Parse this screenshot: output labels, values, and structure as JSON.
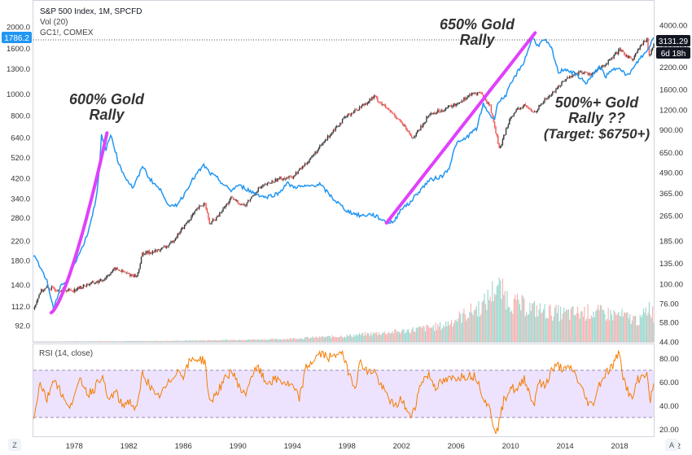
{
  "legend": {
    "symbol": "S&P 500 Index, 1M, SPCFD",
    "volume": "Vol (20)",
    "gold": "GC1!, COMEX",
    "rsi": "RSI (14, close)"
  },
  "price_tags": {
    "gold_last": "1786.2",
    "spx_last": "3131.29",
    "countdown": "6d 18h"
  },
  "annotations": [
    {
      "lines": [
        "600% Gold",
        "Rally"
      ]
    },
    {
      "lines": [
        "650% Gold",
        "Rally"
      ]
    },
    {
      "lines": [
        "500%+ Gold",
        "Rally ??",
        "(Target: $6750+)"
      ]
    }
  ],
  "footer": {
    "left_icon": "Z",
    "right_icon": "A"
  },
  "colors": {
    "gold_line": "#2196f3",
    "spx_up": "#26a69a",
    "spx_down": "#ef5350",
    "rally_highlight": "#e040fb",
    "rsi_line": "#f57c00",
    "rsi_band": "#ede3ff",
    "tag_blue": "#2196f3",
    "tag_dark": "#131722"
  },
  "chart_data": {
    "type": "line",
    "x_axis": {
      "ticks": [
        "1978",
        "1982",
        "1986",
        "1990",
        "1994",
        "1998",
        "2002",
        "2006",
        "2010",
        "2014",
        "2018",
        "202"
      ],
      "range": [
        1975.0,
        2020.5
      ]
    },
    "left_axis": {
      "label": "",
      "scale": "log",
      "ticks": [
        "92.0",
        "112.0",
        "140.0",
        "180.0",
        "220.0",
        "280.0",
        "340.0",
        "420.0",
        "520.0",
        "640.0",
        "800.0",
        "1000.0",
        "1300.0",
        "1600.0",
        "2000.0"
      ]
    },
    "right_axis": {
      "label": "",
      "scale": "log",
      "ticks": [
        "44.00",
        "58.00",
        "76.00",
        "100.00",
        "135.00",
        "185.00",
        "265.00",
        "365.00",
        "490.00",
        "650.00",
        "900.00",
        "1200.00",
        "1600.00",
        "2200.00",
        "3000.00",
        "4000.00"
      ]
    },
    "rsi_axis": {
      "ticks": [
        "20.00",
        "40.00",
        "60.00",
        "80.00"
      ],
      "range": [
        14,
        92
      ],
      "band": [
        30,
        70
      ]
    },
    "series": [
      {
        "name": "GC1!, COMEX",
        "axis": "left",
        "points": [
          [
            1975.0,
            190
          ],
          [
            1975.5,
            170
          ],
          [
            1976.0,
            145
          ],
          [
            1976.5,
            108
          ],
          [
            1977.0,
            140
          ],
          [
            1977.5,
            145
          ],
          [
            1978.0,
            175
          ],
          [
            1978.5,
            200
          ],
          [
            1979.0,
            240
          ],
          [
            1979.5,
            320
          ],
          [
            1979.8,
            420
          ],
          [
            1980.0,
            650
          ],
          [
            1980.3,
            560
          ],
          [
            1980.7,
            660
          ],
          [
            1981.0,
            560
          ],
          [
            1981.3,
            480
          ],
          [
            1981.8,
            420
          ],
          [
            1982.3,
            380
          ],
          [
            1982.8,
            440
          ],
          [
            1983.0,
            480
          ],
          [
            1983.5,
            420
          ],
          [
            1984.0,
            390
          ],
          [
            1984.5,
            360
          ],
          [
            1985.0,
            310
          ],
          [
            1985.5,
            320
          ],
          [
            1986.0,
            350
          ],
          [
            1986.5,
            400
          ],
          [
            1987.0,
            440
          ],
          [
            1987.5,
            480
          ],
          [
            1988.0,
            440
          ],
          [
            1988.5,
            420
          ],
          [
            1989.0,
            390
          ],
          [
            1989.5,
            370
          ],
          [
            1990.0,
            390
          ],
          [
            1990.5,
            380
          ],
          [
            1991.0,
            365
          ],
          [
            1992.0,
            345
          ],
          [
            1993.0,
            360
          ],
          [
            1993.6,
            400
          ],
          [
            1994.0,
            385
          ],
          [
            1995.0,
            385
          ],
          [
            1996.0,
            395
          ],
          [
            1997.0,
            340
          ],
          [
            1998.0,
            300
          ],
          [
            1999.0,
            285
          ],
          [
            1999.8,
            290
          ],
          [
            2000.3,
            280
          ],
          [
            2001.0,
            265
          ],
          [
            2001.5,
            270
          ],
          [
            2002.0,
            310
          ],
          [
            2002.5,
            320
          ],
          [
            2003.0,
            350
          ],
          [
            2004.0,
            410
          ],
          [
            2005.0,
            430
          ],
          [
            2005.5,
            470
          ],
          [
            2006.0,
            600
          ],
          [
            2006.5,
            620
          ],
          [
            2007.0,
            660
          ],
          [
            2007.5,
            700
          ],
          [
            2008.0,
            900
          ],
          [
            2008.8,
            760
          ],
          [
            2009.0,
            900
          ],
          [
            2009.7,
            1000
          ],
          [
            2010.0,
            1100
          ],
          [
            2010.5,
            1250
          ],
          [
            2011.0,
            1400
          ],
          [
            2011.6,
            1800
          ],
          [
            2012.0,
            1650
          ],
          [
            2012.5,
            1750
          ],
          [
            2013.0,
            1600
          ],
          [
            2013.5,
            1250
          ],
          [
            2014.0,
            1300
          ],
          [
            2014.5,
            1250
          ],
          [
            2015.0,
            1200
          ],
          [
            2015.5,
            1120
          ],
          [
            2016.0,
            1200
          ],
          [
            2016.5,
            1330
          ],
          [
            2017.0,
            1200
          ],
          [
            2017.5,
            1280
          ],
          [
            2018.0,
            1330
          ],
          [
            2018.5,
            1200
          ],
          [
            2019.0,
            1300
          ],
          [
            2019.5,
            1450
          ],
          [
            2020.0,
            1550
          ],
          [
            2020.3,
            1700
          ],
          [
            2020.5,
            1786.2
          ]
        ]
      },
      {
        "name": "S&P 500 Index, 1M, SPCFD",
        "axis": "right",
        "points": [
          [
            1975.0,
            70
          ],
          [
            1975.5,
            90
          ],
          [
            1976.0,
            95
          ],
          [
            1977.0,
            92
          ],
          [
            1978.0,
            92
          ],
          [
            1979.0,
            100
          ],
          [
            1980.0,
            105
          ],
          [
            1981.0,
            125
          ],
          [
            1982.0,
            115
          ],
          [
            1982.6,
            112
          ],
          [
            1983.0,
            155
          ],
          [
            1984.0,
            160
          ],
          [
            1985.0,
            175
          ],
          [
            1986.0,
            225
          ],
          [
            1987.0,
            290
          ],
          [
            1987.6,
            320
          ],
          [
            1987.9,
            235
          ],
          [
            1988.5,
            260
          ],
          [
            1989.5,
            340
          ],
          [
            1990.5,
            305
          ],
          [
            1991.5,
            390
          ],
          [
            1993.0,
            450
          ],
          [
            1994.0,
            460
          ],
          [
            1995.0,
            560
          ],
          [
            1996.0,
            700
          ],
          [
            1997.0,
            900
          ],
          [
            1998.0,
            1100
          ],
          [
            1999.0,
            1250
          ],
          [
            2000.0,
            1450
          ],
          [
            2001.0,
            1200
          ],
          [
            2001.8,
            1050
          ],
          [
            2002.8,
            800
          ],
          [
            2003.5,
            950
          ],
          [
            2004.0,
            1120
          ],
          [
            2005.0,
            1200
          ],
          [
            2006.0,
            1300
          ],
          [
            2007.0,
            1480
          ],
          [
            2007.8,
            1540
          ],
          [
            2008.5,
            1260
          ],
          [
            2009.2,
            680
          ],
          [
            2010.0,
            1100
          ],
          [
            2011.0,
            1280
          ],
          [
            2011.7,
            1150
          ],
          [
            2012.5,
            1380
          ],
          [
            2013.0,
            1500
          ],
          [
            2014.0,
            1850
          ],
          [
            2015.0,
            2050
          ],
          [
            2016.0,
            2000
          ],
          [
            2016.5,
            2150
          ],
          [
            2017.0,
            2300
          ],
          [
            2018.0,
            2800
          ],
          [
            2018.9,
            2450
          ],
          [
            2019.5,
            2950
          ],
          [
            2020.0,
            3250
          ],
          [
            2020.2,
            2550
          ],
          [
            2020.5,
            3131.29
          ]
        ]
      }
    ],
    "rally_highlights": [
      {
        "axis": "left",
        "from": [
          1976.3,
          105
        ],
        "to": [
          1980.4,
          670
        ]
      },
      {
        "axis": "left",
        "from": [
          2000.9,
          265
        ],
        "to": [
          2011.8,
          1880
        ]
      }
    ],
    "volume": {
      "label": "Vol (20)",
      "points": [
        [
          1975.0,
          0.005
        ],
        [
          1985.0,
          0.015
        ],
        [
          1993.0,
          0.04
        ],
        [
          1998.0,
          0.09
        ],
        [
          2002.0,
          0.16
        ],
        [
          2005.0,
          0.24
        ],
        [
          2008.0,
          0.55
        ],
        [
          2009.0,
          0.85
        ],
        [
          2010.0,
          0.6
        ],
        [
          2012.0,
          0.48
        ],
        [
          2014.0,
          0.42
        ],
        [
          2016.0,
          0.45
        ],
        [
          2018.0,
          0.4
        ],
        [
          2019.5,
          0.32
        ],
        [
          2020.2,
          0.55
        ],
        [
          2020.5,
          0.4
        ]
      ]
    },
    "rsi": {
      "label": "RSI (14, close)",
      "points": [
        [
          1975.0,
          30
        ],
        [
          1975.5,
          60
        ],
        [
          1976.0,
          45
        ],
        [
          1976.5,
          64
        ],
        [
          1977.0,
          52
        ],
        [
          1977.5,
          38
        ],
        [
          1978.0,
          48
        ],
        [
          1978.5,
          62
        ],
        [
          1979.0,
          50
        ],
        [
          1979.5,
          55
        ],
        [
          1980.0,
          66
        ],
        [
          1980.5,
          44
        ],
        [
          1981.0,
          52
        ],
        [
          1981.5,
          40
        ],
        [
          1982.0,
          44
        ],
        [
          1982.6,
          36
        ],
        [
          1983.0,
          68
        ],
        [
          1983.5,
          58
        ],
        [
          1984.0,
          46
        ],
        [
          1984.5,
          52
        ],
        [
          1985.0,
          60
        ],
        [
          1985.5,
          70
        ],
        [
          1986.0,
          66
        ],
        [
          1986.5,
          78
        ],
        [
          1987.0,
          80
        ],
        [
          1987.6,
          78
        ],
        [
          1987.9,
          42
        ],
        [
          1988.5,
          52
        ],
        [
          1989.5,
          70
        ],
        [
          1990.5,
          48
        ],
        [
          1991.0,
          66
        ],
        [
          1991.5,
          72
        ],
        [
          1992.0,
          60
        ],
        [
          1993.0,
          62
        ],
        [
          1994.0,
          56
        ],
        [
          1994.5,
          46
        ],
        [
          1995.0,
          72
        ],
        [
          1996.0,
          84
        ],
        [
          1997.0,
          80
        ],
        [
          1997.5,
          88
        ],
        [
          1998.0,
          72
        ],
        [
          1998.6,
          56
        ],
        [
          1999.0,
          78
        ],
        [
          1999.5,
          68
        ],
        [
          2000.0,
          70
        ],
        [
          2000.5,
          56
        ],
        [
          2001.0,
          48
        ],
        [
          2001.5,
          38
        ],
        [
          2002.0,
          46
        ],
        [
          2002.6,
          30
        ],
        [
          2003.0,
          40
        ],
        [
          2003.5,
          62
        ],
        [
          2004.0,
          66
        ],
        [
          2004.5,
          56
        ],
        [
          2005.0,
          60
        ],
        [
          2006.0,
          64
        ],
        [
          2007.0,
          66
        ],
        [
          2007.5,
          64
        ],
        [
          2008.0,
          48
        ],
        [
          2008.5,
          36
        ],
        [
          2008.8,
          22
        ],
        [
          2009.0,
          18
        ],
        [
          2009.5,
          44
        ],
        [
          2010.0,
          56
        ],
        [
          2010.5,
          52
        ],
        [
          2011.0,
          64
        ],
        [
          2011.7,
          40
        ],
        [
          2012.0,
          60
        ],
        [
          2012.5,
          56
        ],
        [
          2013.0,
          70
        ],
        [
          2013.5,
          74
        ],
        [
          2014.0,
          70
        ],
        [
          2014.5,
          72
        ],
        [
          2015.0,
          60
        ],
        [
          2015.6,
          44
        ],
        [
          2016.0,
          40
        ],
        [
          2016.5,
          58
        ],
        [
          2017.0,
          68
        ],
        [
          2017.5,
          74
        ],
        [
          2018.0,
          86
        ],
        [
          2018.3,
          62
        ],
        [
          2018.9,
          44
        ],
        [
          2019.3,
          62
        ],
        [
          2019.8,
          66
        ],
        [
          2020.0,
          70
        ],
        [
          2020.2,
          42
        ],
        [
          2020.5,
          58
        ]
      ]
    }
  }
}
